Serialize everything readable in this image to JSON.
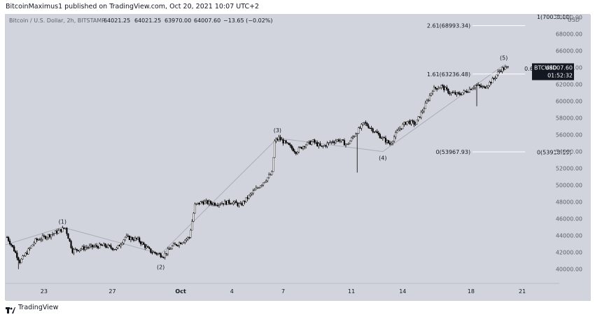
{
  "page": {
    "credit": "BitcoinMaximus1 published on TradingView.com, Oct 20, 2021 10:07 UTC+2",
    "footer_brand": "TradingView"
  },
  "colors": {
    "chart_background": "#d1d4dc",
    "candle": "#000000",
    "wave_line": "#a9adb8",
    "price_tag_bg": "#131722",
    "price_tag_text": "#ffffff"
  },
  "chart_data": {
    "type": "candlestick",
    "title": "Bitcoin / U.S. Dollar, 2h, BITSTAMP",
    "ohlc_text": {
      "open": "64021.25",
      "high": "64021.25",
      "low": "63970.00",
      "close": "64007.60",
      "change": "−13.65 (−0.02%)"
    },
    "currency": "USD",
    "ylim": [
      38300,
      70300
    ],
    "y_ticks": [
      40000,
      42000,
      44000,
      46000,
      48000,
      50000,
      52000,
      54000,
      56000,
      58000,
      60000,
      62000,
      64000,
      66000,
      68000,
      70000
    ],
    "y_tick_labels": [
      "40000.00",
      "42000.00",
      "44000.00",
      "46000.00",
      "48000.00",
      "50000.00",
      "52000.00",
      "54000.00",
      "56000.00",
      "58000.00",
      "60000.00",
      "62000.00",
      "64000.00",
      "66000.00",
      "68000.00",
      "70000.00"
    ],
    "xlim": [
      "2021-09-20T18:00",
      "2021-10-23T04:00"
    ],
    "x_ticks": [
      {
        "date": "2021-09-23",
        "label": "23"
      },
      {
        "date": "2021-09-27",
        "label": "27"
      },
      {
        "date": "2021-10-01",
        "label": "Oct"
      },
      {
        "date": "2021-10-04",
        "label": "4"
      },
      {
        "date": "2021-10-07",
        "label": "7"
      },
      {
        "date": "2021-10-11",
        "label": "11"
      },
      {
        "date": "2021-10-14",
        "label": "14"
      },
      {
        "date": "2021-10-18",
        "label": "18"
      },
      {
        "date": "2021-10-21",
        "label": "21"
      }
    ],
    "grid": false,
    "last_price": {
      "label": "BTCUSD",
      "value": "64007.60",
      "countdown": "01:52:32"
    },
    "price_path": [
      {
        "date": "2021-09-20T20:00",
        "price": 43800
      },
      {
        "date": "2021-09-21T04:00",
        "price": 42600
      },
      {
        "date": "2021-09-21T14:00",
        "price": 40900
      },
      {
        "date": "2021-09-22T00:00",
        "price": 42000
      },
      {
        "date": "2021-09-22T12:00",
        "price": 43400
      },
      {
        "date": "2021-09-23T12:00",
        "price": 44200
      },
      {
        "date": "2021-09-24T06:00",
        "price": 44900
      },
      {
        "date": "2021-09-24T16:00",
        "price": 42200
      },
      {
        "date": "2021-09-25T12:00",
        "price": 42600
      },
      {
        "date": "2021-09-26T12:00",
        "price": 42800
      },
      {
        "date": "2021-09-27T06:00",
        "price": 42400
      },
      {
        "date": "2021-09-27T18:00",
        "price": 43800
      },
      {
        "date": "2021-09-28T12:00",
        "price": 43500
      },
      {
        "date": "2021-09-29T06:00",
        "price": 42100
      },
      {
        "date": "2021-09-30T00:00",
        "price": 41600
      },
      {
        "date": "2021-09-30T12:00",
        "price": 42700
      },
      {
        "date": "2021-10-01T00:00",
        "price": 43200
      },
      {
        "date": "2021-10-01T12:00",
        "price": 43800
      },
      {
        "date": "2021-10-01T20:00",
        "price": 47600
      },
      {
        "date": "2021-10-02T06:00",
        "price": 48000
      },
      {
        "date": "2021-10-03T00:00",
        "price": 47800
      },
      {
        "date": "2021-10-04T00:00",
        "price": 48000
      },
      {
        "date": "2021-10-04T12:00",
        "price": 47600
      },
      {
        "date": "2021-10-05T06:00",
        "price": 49200
      },
      {
        "date": "2021-10-05T18:00",
        "price": 50200
      },
      {
        "date": "2021-10-06T08:00",
        "price": 51400
      },
      {
        "date": "2021-10-06T12:00",
        "price": 55200
      },
      {
        "date": "2021-10-06T18:00",
        "price": 55600
      },
      {
        "date": "2021-10-07T06:00",
        "price": 54800
      },
      {
        "date": "2021-10-07T18:00",
        "price": 54000
      },
      {
        "date": "2021-10-08T06:00",
        "price": 54800
      },
      {
        "date": "2021-10-08T18:00",
        "price": 55200
      },
      {
        "date": "2021-10-09T06:00",
        "price": 54500
      },
      {
        "date": "2021-10-09T18:00",
        "price": 55100
      },
      {
        "date": "2021-10-10T06:00",
        "price": 55400
      },
      {
        "date": "2021-10-10T18:00",
        "price": 54800
      },
      {
        "date": "2021-10-11T06:00",
        "price": 56200
      },
      {
        "date": "2021-10-11T18:00",
        "price": 57400
      },
      {
        "date": "2021-10-12T06:00",
        "price": 56600
      },
      {
        "date": "2021-10-12T18:00",
        "price": 55700
      },
      {
        "date": "2021-10-13T06:00",
        "price": 54900
      },
      {
        "date": "2021-10-13T18:00",
        "price": 56600
      },
      {
        "date": "2021-10-14T06:00",
        "price": 57600
      },
      {
        "date": "2021-10-14T18:00",
        "price": 57300
      },
      {
        "date": "2021-10-15T06:00",
        "price": 59200
      },
      {
        "date": "2021-10-15T18:00",
        "price": 61400
      },
      {
        "date": "2021-10-16T06:00",
        "price": 61800
      },
      {
        "date": "2021-10-16T18:00",
        "price": 61000
      },
      {
        "date": "2021-10-17T06:00",
        "price": 60800
      },
      {
        "date": "2021-10-17T18:00",
        "price": 61200
      },
      {
        "date": "2021-10-18T06:00",
        "price": 61900
      },
      {
        "date": "2021-10-18T18:00",
        "price": 61600
      },
      {
        "date": "2021-10-19T06:00",
        "price": 62500
      },
      {
        "date": "2021-10-19T18:00",
        "price": 63800
      },
      {
        "date": "2021-10-20T04:00",
        "price": 64007.6
      }
    ],
    "wave_points": [
      {
        "date": "2021-09-20T18:00",
        "price": 42900
      },
      {
        "date": "2021-09-24T02:00",
        "price": 45000
      },
      {
        "date": "2021-09-29T20:00",
        "price": 41800
      },
      {
        "date": "2021-10-06T16:00",
        "price": 55600
      },
      {
        "date": "2021-10-12T20:00",
        "price": 54000
      },
      {
        "date": "2021-10-19T22:00",
        "price": 64300
      }
    ],
    "wave_labels": [
      {
        "label": "(1)",
        "date": "2021-09-24T02:00",
        "price": 45000,
        "pos": "above"
      },
      {
        "label": "(2)",
        "date": "2021-09-29T20:00",
        "price": 41000,
        "pos": "below"
      },
      {
        "label": "(3)",
        "date": "2021-10-06T16:00",
        "price": 55900,
        "pos": "above"
      },
      {
        "label": "(4)",
        "date": "2021-10-12T20:00",
        "price": 54000,
        "pos": "below"
      },
      {
        "label": "(5)",
        "date": "2021-10-19T22:00",
        "price": 64500,
        "pos": "above"
      }
    ],
    "fib_levels": [
      {
        "text": "2.61(68993.34)",
        "price": 68993.34,
        "from": "2021-10-15T22:00",
        "to": "2021-10-21T04:00"
      },
      {
        "text": "1.61(63236.48)",
        "price": 63236.48,
        "from": "2021-10-15T22:00",
        "to": "2021-10-21T04:00"
      },
      {
        "text": "0(53967.93)",
        "price": 53967.93,
        "from": "2021-10-15T22:00",
        "to": "2021-10-21T04:00"
      },
      {
        "text": "1(70039.10)",
        "price": 70039.1,
        "from": "2021-10-21T20:00",
        "to": "2021-10-22T20:00"
      },
      {
        "text": "0.618(63880.91)",
        "price": 63880.91,
        "from": "2021-10-21T20:00",
        "to": "2021-10-22T20:00"
      },
      {
        "text": "0(53918.19)",
        "price": 53918.19,
        "from": "2021-10-21T20:00",
        "to": "2021-10-22T20:00"
      }
    ]
  }
}
